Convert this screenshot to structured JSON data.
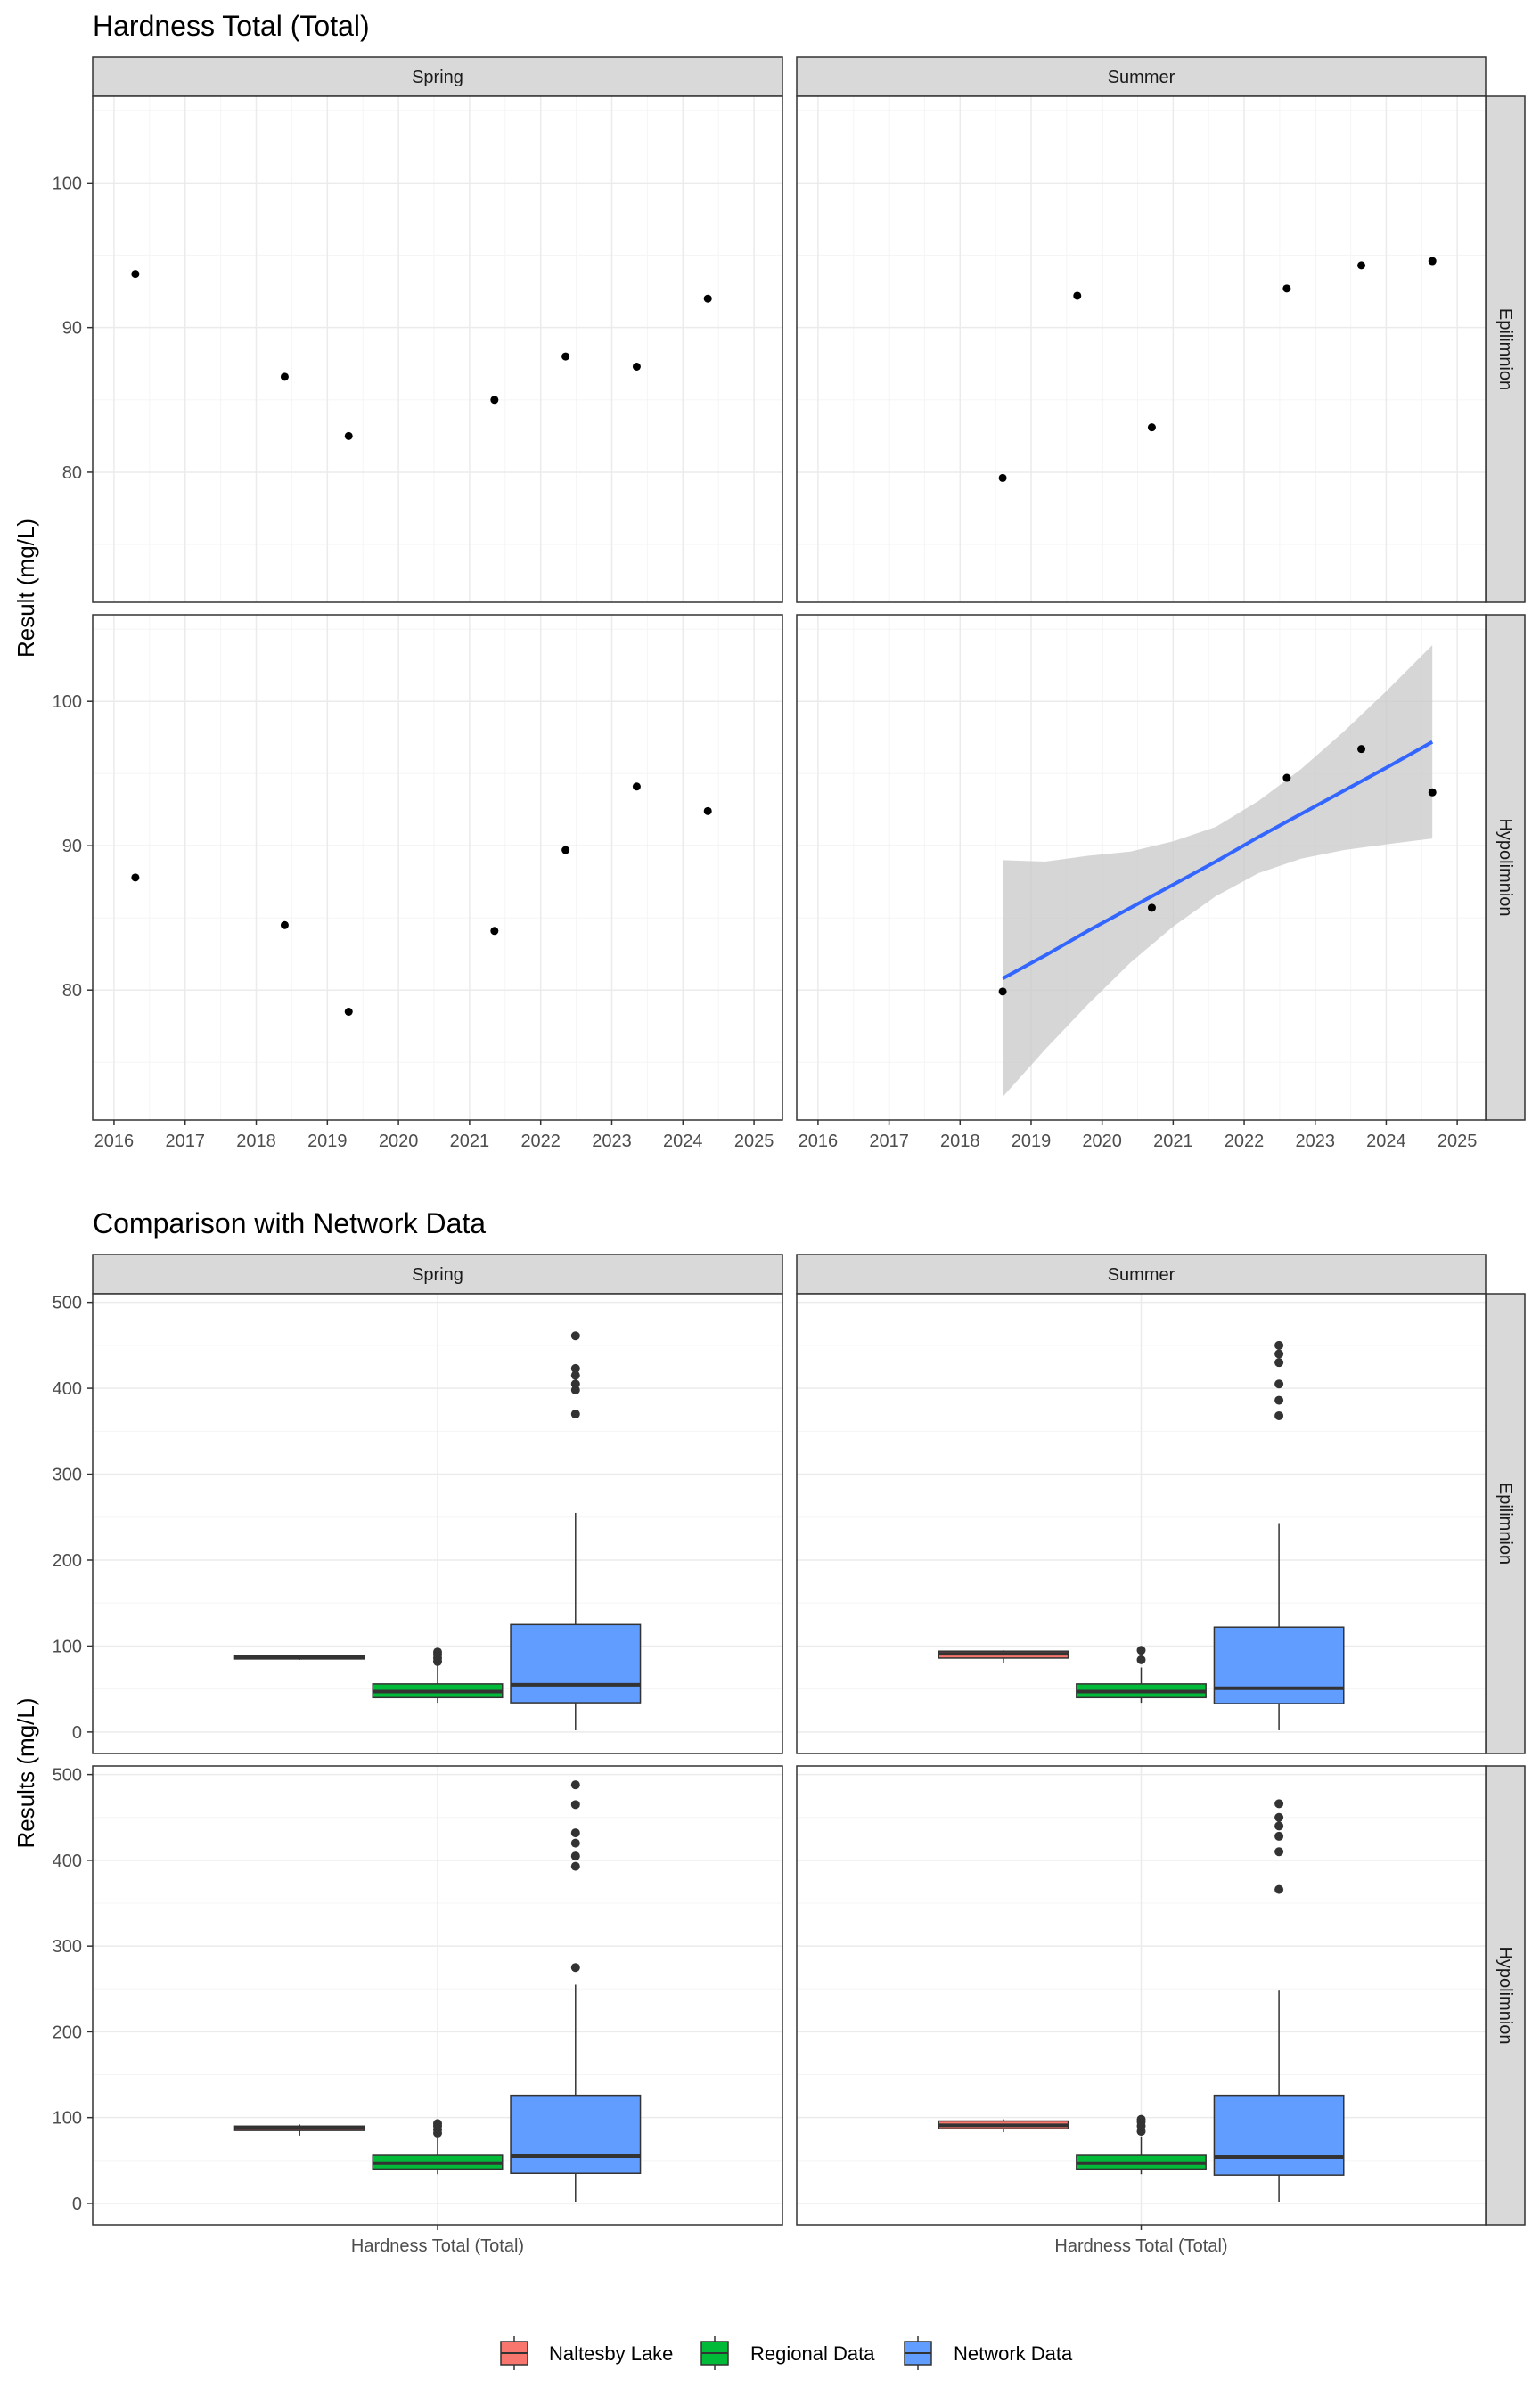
{
  "colors": {
    "strip_bg": "#d9d9d9",
    "grid_major": "#ebebeb",
    "grid_minor": "#f5f5f5",
    "panel_border": "#333333",
    "point": "#000000",
    "trend_line": "#3366ff",
    "ribbon": "#c8c8c8",
    "median": "#333333",
    "outlier": "#333333"
  },
  "chart_data": [
    {
      "type": "scatter",
      "title": "Hardness Total (Total)",
      "ylabel": "Result (mg/L)",
      "xlabel": "",
      "column_facets": [
        "Spring",
        "Summer"
      ],
      "row_facets": [
        "Epilimnion",
        "Hypolimnion"
      ],
      "xlim": [
        2015.7,
        2025.4
      ],
      "ylim": [
        71,
        106
      ],
      "x_ticks": [
        "2016",
        "2017",
        "2018",
        "2019",
        "2020",
        "2021",
        "2022",
        "2023",
        "2024",
        "2025"
      ],
      "y_ticks": [
        "80",
        "90",
        "100"
      ],
      "grid": true,
      "panels": [
        {
          "row": "Epilimnion",
          "col": "Spring",
          "points": [
            {
              "x": 2016.3,
              "y": 93.7
            },
            {
              "x": 2018.4,
              "y": 86.6
            },
            {
              "x": 2019.3,
              "y": 82.5
            },
            {
              "x": 2021.35,
              "y": 85.0
            },
            {
              "x": 2022.35,
              "y": 88.0
            },
            {
              "x": 2023.35,
              "y": 87.3
            },
            {
              "x": 2024.35,
              "y": 92.0
            }
          ]
        },
        {
          "row": "Epilimnion",
          "col": "Summer",
          "points": [
            {
              "x": 2018.6,
              "y": 79.6
            },
            {
              "x": 2019.65,
              "y": 92.2
            },
            {
              "x": 2020.7,
              "y": 83.1
            },
            {
              "x": 2022.6,
              "y": 92.7
            },
            {
              "x": 2023.65,
              "y": 94.3
            },
            {
              "x": 2024.65,
              "y": 94.6
            }
          ]
        },
        {
          "row": "Hypolimnion",
          "col": "Spring",
          "points": [
            {
              "x": 2016.3,
              "y": 87.8
            },
            {
              "x": 2018.4,
              "y": 84.5
            },
            {
              "x": 2019.3,
              "y": 78.5
            },
            {
              "x": 2021.35,
              "y": 84.1
            },
            {
              "x": 2022.35,
              "y": 89.7
            },
            {
              "x": 2023.35,
              "y": 94.1
            },
            {
              "x": 2024.35,
              "y": 92.4
            }
          ]
        },
        {
          "row": "Hypolimnion",
          "col": "Summer",
          "points": [
            {
              "x": 2018.6,
              "y": 79.9
            },
            {
              "x": 2020.7,
              "y": 85.7
            },
            {
              "x": 2022.6,
              "y": 94.7
            },
            {
              "x": 2023.65,
              "y": 96.7
            },
            {
              "x": 2024.65,
              "y": 93.7
            }
          ],
          "trend": {
            "x": [
              2018.6,
              2019.2,
              2019.8,
              2020.4,
              2021.0,
              2021.6,
              2022.2,
              2022.8,
              2023.4,
              2024.0,
              2024.65
            ],
            "fit": [
              80.8,
              82.4,
              84.1,
              85.7,
              87.3,
              88.9,
              90.6,
              92.2,
              93.8,
              95.4,
              97.2
            ],
            "lower": [
              72.6,
              75.9,
              79.0,
              81.9,
              84.4,
              86.5,
              88.1,
              89.1,
              89.7,
              90.1,
              90.5
            ],
            "upper": [
              89.0,
              88.9,
              89.3,
              89.6,
              90.3,
              91.3,
              93.1,
              95.3,
              97.9,
              100.7,
              103.9
            ]
          }
        }
      ]
    },
    {
      "type": "box",
      "title": "Comparison with Network Data",
      "ylabel": "Results (mg/L)",
      "xlabel": "Hardness Total (Total)",
      "column_facets": [
        "Spring",
        "Summer"
      ],
      "row_facets": [
        "Epilimnion",
        "Hypolimnion"
      ],
      "ylim": [
        -25,
        510
      ],
      "y_ticks": [
        "0",
        "100",
        "200",
        "300",
        "400",
        "500"
      ],
      "x_ticks": [
        "Hardness Total (Total)"
      ],
      "groups": [
        {
          "name": "Naltesby Lake",
          "color": "#f8766d"
        },
        {
          "name": "Regional Data",
          "color": "#00ba38"
        },
        {
          "name": "Network Data",
          "color": "#619cff"
        }
      ],
      "panels": [
        {
          "row": "Epilimnion",
          "col": "Spring",
          "boxes": [
            {
              "group": "Naltesby Lake",
              "q1": 85,
              "median": 87,
              "q3": 89,
              "whisker_low": 84,
              "whisker_high": 90,
              "outliers": []
            },
            {
              "group": "Regional Data",
              "q1": 40,
              "median": 47,
              "q3": 56,
              "whisker_low": 34,
              "whisker_high": 78,
              "outliers": [
                82,
                86,
                90,
                93
              ]
            },
            {
              "group": "Network Data",
              "q1": 34,
              "median": 55,
              "q3": 125,
              "whisker_low": 2,
              "whisker_high": 255,
              "outliers": [
                370,
                398,
                405,
                415,
                423,
                461
              ]
            }
          ]
        },
        {
          "row": "Epilimnion",
          "col": "Summer",
          "boxes": [
            {
              "group": "Naltesby Lake",
              "q1": 86,
              "median": 91,
              "q3": 94,
              "whisker_low": 80,
              "whisker_high": 95,
              "outliers": []
            },
            {
              "group": "Regional Data",
              "q1": 40,
              "median": 47,
              "q3": 56,
              "whisker_low": 34,
              "whisker_high": 75,
              "outliers": [
                84,
                95
              ]
            },
            {
              "group": "Network Data",
              "q1": 33,
              "median": 51,
              "q3": 122,
              "whisker_low": 2,
              "whisker_high": 243,
              "outliers": [
                368,
                386,
                405,
                430,
                440,
                450
              ]
            }
          ]
        },
        {
          "row": "Hypolimnion",
          "col": "Spring",
          "boxes": [
            {
              "group": "Naltesby Lake",
              "q1": 85,
              "median": 88,
              "q3": 90,
              "whisker_low": 79,
              "whisker_high": 92,
              "outliers": []
            },
            {
              "group": "Regional Data",
              "q1": 40,
              "median": 47,
              "q3": 56,
              "whisker_low": 34,
              "whisker_high": 76,
              "outliers": [
                82,
                86,
                90,
                93
              ]
            },
            {
              "group": "Network Data",
              "q1": 35,
              "median": 55,
              "q3": 126,
              "whisker_low": 2,
              "whisker_high": 255,
              "outliers": [
                275,
                393,
                405,
                420,
                432,
                465,
                488
              ]
            }
          ]
        },
        {
          "row": "Hypolimnion",
          "col": "Summer",
          "boxes": [
            {
              "group": "Naltesby Lake",
              "q1": 87,
              "median": 91,
              "q3": 96,
              "whisker_low": 83,
              "whisker_high": 98,
              "outliers": []
            },
            {
              "group": "Regional Data",
              "q1": 40,
              "median": 47,
              "q3": 56,
              "whisker_low": 34,
              "whisker_high": 78,
              "outliers": [
                84,
                90,
                95,
                98
              ]
            },
            {
              "group": "Network Data",
              "q1": 33,
              "median": 54,
              "q3": 126,
              "whisker_low": 2,
              "whisker_high": 248,
              "outliers": [
                366,
                410,
                428,
                440,
                450,
                466
              ]
            }
          ]
        }
      ],
      "legend": [
        "Naltesby Lake",
        "Regional Data",
        "Network Data"
      ]
    }
  ]
}
